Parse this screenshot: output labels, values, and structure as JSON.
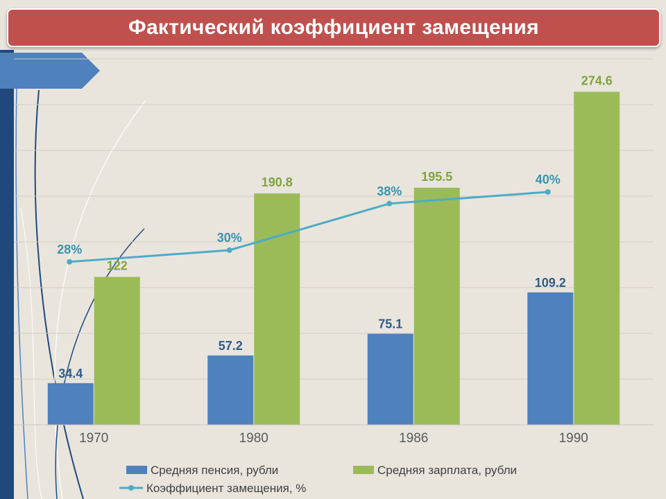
{
  "slide": {
    "title": "Фактический коэффициент замещения"
  },
  "colors": {
    "pension": "#4f81bd",
    "salary": "#9bbb59",
    "ratio": "#4bacc6",
    "title_bar": "#c0504d",
    "background": "#e9e5dd",
    "accent_bar": "#4f81bd"
  },
  "chart_data": {
    "type": "bar",
    "categories": [
      "1970",
      "1980",
      "1986",
      "1990"
    ],
    "series": [
      {
        "name": "Средняя пенсия, рубли",
        "type": "bar",
        "values": [
          34.4,
          57.2,
          75.1,
          109.2
        ],
        "labels": [
          "34.4",
          "57.2",
          "75.1",
          "109.2"
        ]
      },
      {
        "name": "Средняя зарплата, рубли",
        "type": "bar",
        "values": [
          122,
          190.8,
          195.5,
          274.6
        ],
        "labels": [
          "122",
          "190.8",
          "195.5",
          "274.6"
        ]
      },
      {
        "name": "Коэффициент замещения, %",
        "type": "line",
        "values": [
          28,
          30,
          38,
          40
        ],
        "labels": [
          "28%",
          "30%",
          "38%",
          "40%"
        ]
      }
    ],
    "ylim_bars": [
      0,
      300
    ],
    "ylim_line": [
      0,
      50
    ],
    "grid": true,
    "legend_position": "bottom"
  }
}
